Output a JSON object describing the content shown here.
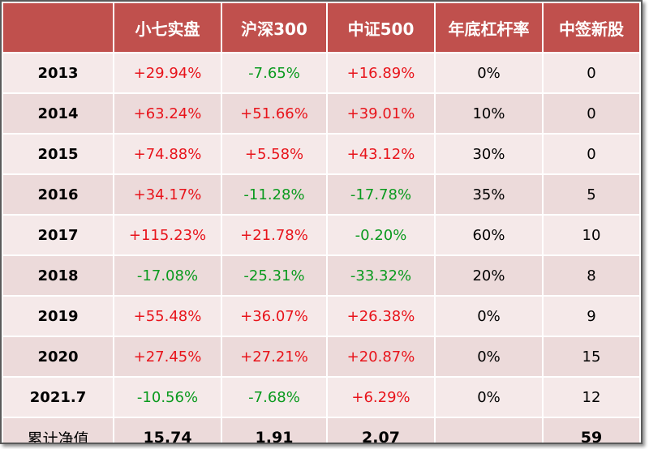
{
  "table": {
    "headers": [
      "",
      "小七实盘",
      "沪深300",
      "中证500",
      "年底杠杆率",
      "中签新股"
    ],
    "rows": [
      [
        "2013",
        "+29.94%",
        "-7.65%",
        "+16.89%",
        "0%",
        "0"
      ],
      [
        "2014",
        "+63.24%",
        "+51.66%",
        "+39.01%",
        "10%",
        "0"
      ],
      [
        "2015",
        "+74.88%",
        "+5.58%",
        "+43.12%",
        "30%",
        "0"
      ],
      [
        "2016",
        "+34.17%",
        "-11.28%",
        "-17.78%",
        "35%",
        "5"
      ],
      [
        "2017",
        "+115.23%",
        "+21.78%",
        "-0.20%",
        "60%",
        "10"
      ],
      [
        "2018",
        "-17.08%",
        "-25.31%",
        "-33.32%",
        "20%",
        "8"
      ],
      [
        "2019",
        "+55.48%",
        "+36.07%",
        "+26.38%",
        "0%",
        "9"
      ],
      [
        "2020",
        "+27.45%",
        "+27.21%",
        "+20.87%",
        "0%",
        "15"
      ],
      [
        "2021.7",
        "-10.56%",
        "-7.68%",
        "+6.29%",
        "0%",
        "12"
      ]
    ],
    "total": [
      "累计净值",
      "15.74",
      "1.91",
      "2.07",
      "",
      "59"
    ]
  },
  "colors": {
    "header_bg": "#c0504d",
    "positive": "#e8141b",
    "negative": "#0a9a1e",
    "row_odd": "#f5e9e9",
    "row_even": "#ecdada"
  }
}
